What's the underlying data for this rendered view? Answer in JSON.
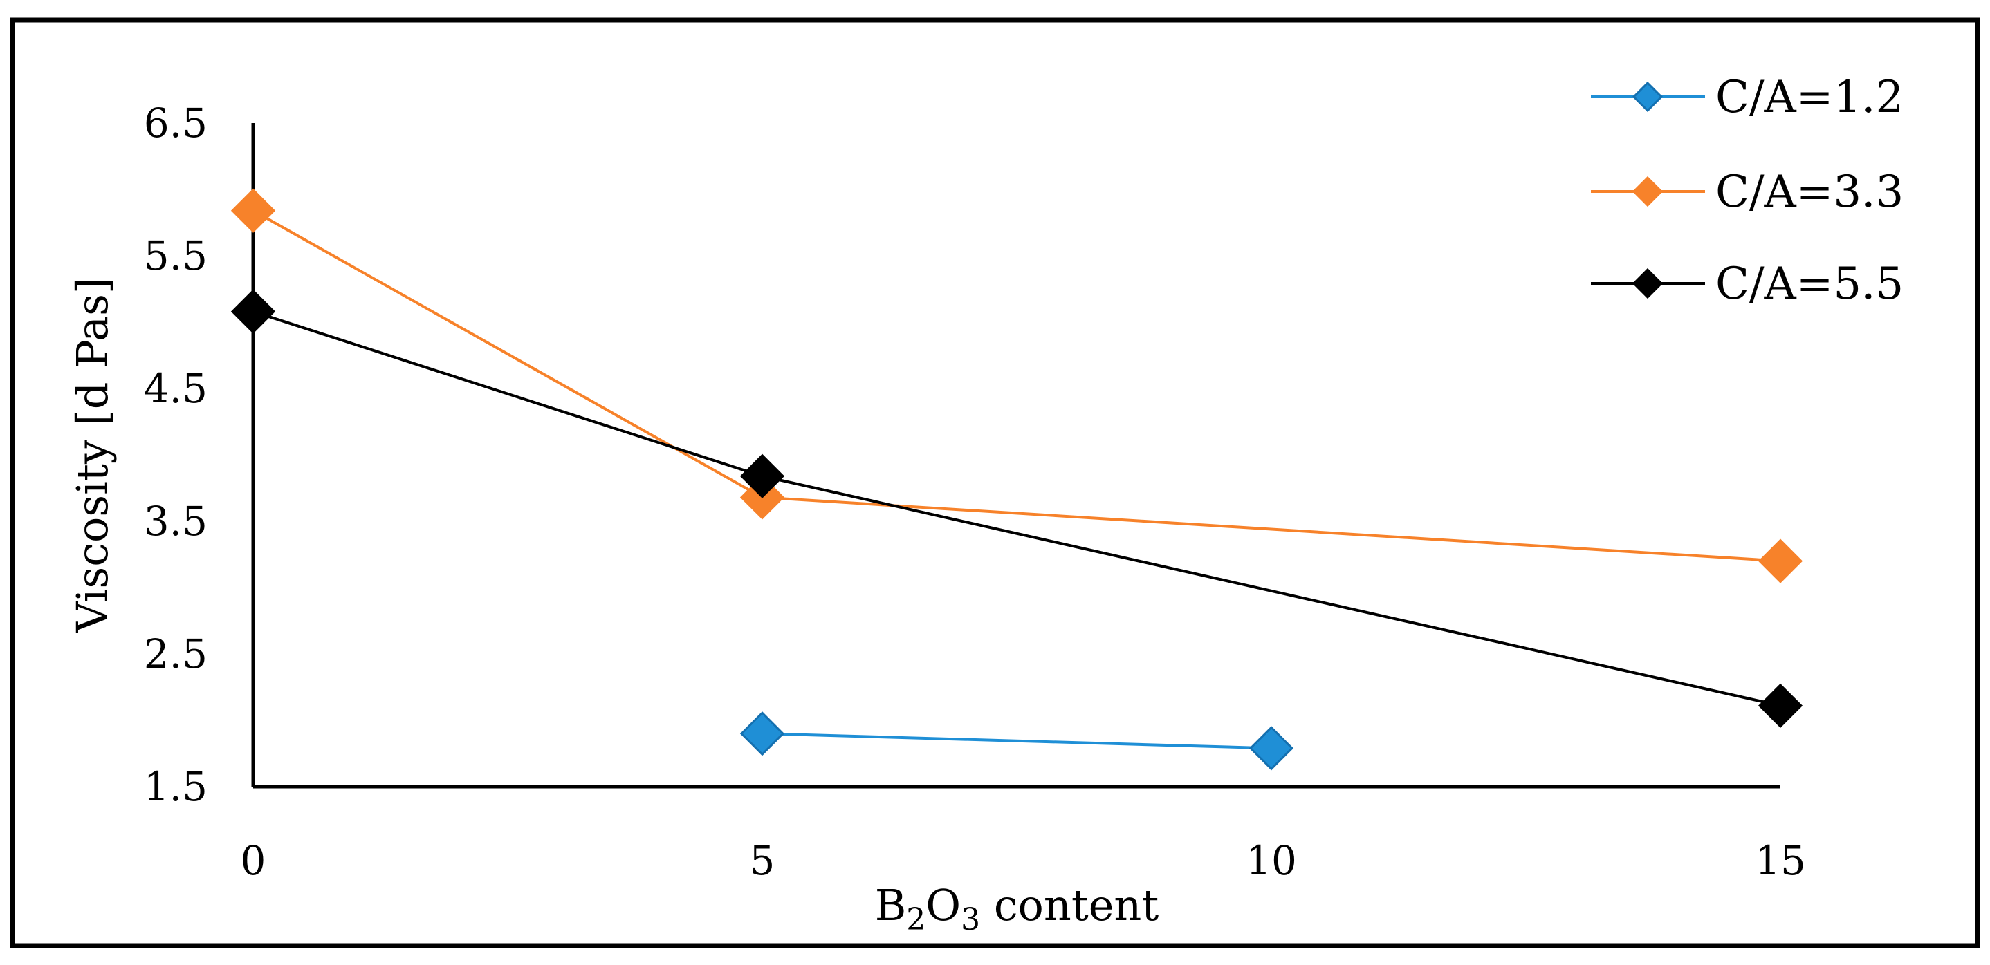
{
  "chart_data": {
    "type": "line",
    "title": "",
    "xlabel": {
      "main": "B",
      "sub1": "2",
      "mid": "O",
      "sub2": "3",
      "rest": " content"
    },
    "ylabel": "Viscosity [d Pas]",
    "xlim": [
      0,
      15
    ],
    "ylim": [
      1.5,
      6.5
    ],
    "x_ticks": [
      "0",
      "5",
      "10",
      "15"
    ],
    "x_tick_values": [
      0,
      5,
      10,
      15
    ],
    "y_ticks": [
      "6.5",
      "5.5",
      "4.5",
      "3.5",
      "2.5",
      "1.5"
    ],
    "y_tick_values": [
      6.5,
      5.5,
      4.5,
      3.5,
      2.5,
      1.5
    ],
    "grid": false,
    "legend_position": "top-right",
    "series": [
      {
        "name": "C/A=1.2",
        "color": "#1f8fd6",
        "marker": "diamond",
        "x": [
          5,
          10
        ],
        "y": [
          1.9,
          1.79
        ]
      },
      {
        "name": "C/A=3.3",
        "color": "#f7822a",
        "marker": "diamond",
        "x": [
          0,
          5,
          15
        ],
        "y": [
          5.84,
          3.68,
          3.2
        ]
      },
      {
        "name": "C/A=5.5",
        "color": "#000000",
        "marker": "diamond",
        "x": [
          0,
          5,
          15
        ],
        "y": [
          5.08,
          3.84,
          2.11
        ]
      }
    ]
  }
}
